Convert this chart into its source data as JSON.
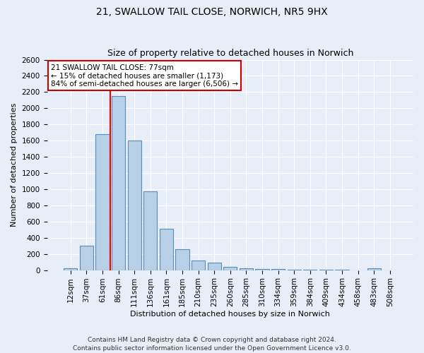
{
  "title": "21, SWALLOW TAIL CLOSE, NORWICH, NR5 9HX",
  "subtitle": "Size of property relative to detached houses in Norwich",
  "xlabel": "Distribution of detached houses by size in Norwich",
  "ylabel": "Number of detached properties",
  "bin_labels": [
    "12sqm",
    "37sqm",
    "61sqm",
    "86sqm",
    "111sqm",
    "136sqm",
    "161sqm",
    "185sqm",
    "210sqm",
    "235sqm",
    "260sqm",
    "285sqm",
    "310sqm",
    "334sqm",
    "359sqm",
    "384sqm",
    "409sqm",
    "434sqm",
    "458sqm",
    "483sqm",
    "508sqm"
  ],
  "bar_values": [
    20,
    300,
    1680,
    2150,
    1600,
    970,
    510,
    255,
    120,
    90,
    40,
    25,
    15,
    10,
    5,
    5,
    3,
    2,
    0,
    20,
    0
  ],
  "bar_color": "#b8cfe8",
  "bar_edge_color": "#5b8db8",
  "red_line_x": 2.5,
  "annotation_title": "21 SWALLOW TAIL CLOSE: 77sqm",
  "annotation_line1": "← 15% of detached houses are smaller (1,173)",
  "annotation_line2": "84% of semi-detached houses are larger (6,506) →",
  "annotation_box_color": "#ffffff",
  "annotation_box_edge": "#cc0000",
  "ylim": [
    0,
    2600
  ],
  "yticks": [
    0,
    200,
    400,
    600,
    800,
    1000,
    1200,
    1400,
    1600,
    1800,
    2000,
    2200,
    2400,
    2600
  ],
  "footer1": "Contains HM Land Registry data © Crown copyright and database right 2024.",
  "footer2": "Contains public sector information licensed under the Open Government Licence v3.0.",
  "background_color": "#e8eef8",
  "grid_color": "#ffffff",
  "title_fontsize": 10,
  "subtitle_fontsize": 9,
  "axis_label_fontsize": 8,
  "tick_fontsize": 7.5,
  "annotation_fontsize": 7.5,
  "footer_fontsize": 6.5
}
